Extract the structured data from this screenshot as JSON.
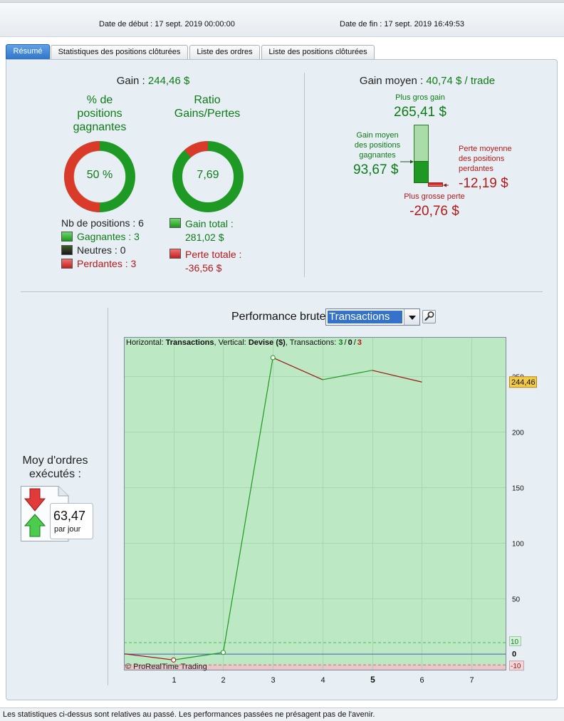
{
  "header": {
    "start_label": "Date de début :",
    "start_value": "17 sept. 2019 00:00:00",
    "end_label": "Date de fin :",
    "end_value": "17 sept. 2019 16:49:53"
  },
  "tabs": [
    {
      "label": "Résumé",
      "active": true
    },
    {
      "label": "Statistiques des positions clôturées",
      "active": false
    },
    {
      "label": "Liste des ordres",
      "active": false
    },
    {
      "label": "Liste des positions clôturées",
      "active": false
    }
  ],
  "summary": {
    "gain_label": "Gain :",
    "gain_value": "244,46 $",
    "win_pct_title": [
      "% de",
      "positions",
      "gagnantes"
    ],
    "win_pct_value": "50 %",
    "win_fraction": 0.5,
    "ratio_title": [
      "Ratio",
      "Gains/Pertes"
    ],
    "ratio_value": "7,69",
    "ratio_red_fraction": 0.115,
    "nb_positions": "Nb de positions : 6",
    "gagnantes": "Gagnantes : 3",
    "neutres": "Neutres : 0",
    "perdantes": "Perdantes : 3",
    "gain_total_label": "Gain total :",
    "gain_total_value": "281,02 $",
    "perte_totale_label": "Perte totale :",
    "perte_totale_value": "-36,56 $"
  },
  "avg_gain": {
    "label": "Gain moyen :",
    "value": "40,74 $ / trade",
    "best_label": "Plus gros gain",
    "best_value": "265,41 $",
    "avg_win_label": [
      "Gain moyen",
      "des positions",
      "gagnantes"
    ],
    "avg_win_value": "93,67 $",
    "avg_loss_label": [
      "Perte moyenne",
      "des positions",
      "perdantes"
    ],
    "avg_loss_value": "-12,19 $",
    "worst_label": "Plus grosse perte",
    "worst_value": "-20,76 $"
  },
  "orders": {
    "label": [
      "Moy d'ordres",
      "exécutés :"
    ],
    "value": "63,47",
    "unit": "par jour"
  },
  "performance": {
    "title": "Performance brute",
    "select_value": "Transactions",
    "info": {
      "h_label": "Horizontal:",
      "h_value": "Transactions",
      "v_label": ", Vertical:",
      "v_value": "Devise ($)",
      "t_label": ", Transactions:",
      "t_win": "3",
      "t_sep1": "/",
      "t_neutral": "0",
      "t_sep2": "/",
      "t_loss": "3"
    },
    "copyright": "© ProRealTime Trading"
  },
  "chart_data": {
    "type": "line",
    "x": [
      0,
      1,
      2,
      3,
      4,
      5,
      6
    ],
    "y": [
      0,
      -5.6,
      1.2,
      266.4,
      246.6,
      255.0,
      244.46
    ],
    "x_ticks": [
      "1",
      "2",
      "3",
      "4",
      "5",
      "6",
      "7"
    ],
    "highlight_x_tick": "5",
    "y_ticks": [
      "250",
      "200",
      "150",
      "100",
      "50"
    ],
    "zero_label": "0",
    "band_top_label": "10",
    "band_bottom_label": "-10",
    "last_value_label": "244,46",
    "band": [
      -10,
      10
    ],
    "ylim": [
      -15,
      285
    ],
    "xlim": [
      0,
      7.7
    ],
    "xlabel": "Transactions",
    "ylabel": "Devise ($)",
    "colors": {
      "up": "#1c9a1c",
      "down": "#a01414",
      "green_bg": "#bde8c4",
      "red_bg": "#e9c6c8",
      "zero_line": "#4a5cb8"
    }
  },
  "footer": "Les statistiques ci-dessus sont relatives au passé. Les performances passées ne présagent pas de l'avenir."
}
